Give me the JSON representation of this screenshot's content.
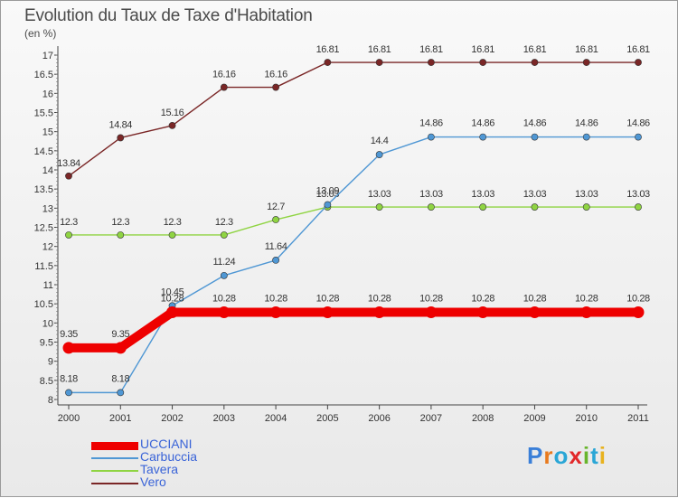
{
  "page": {
    "title": "Evolution du Taux de Taxe d'Habitation",
    "unit": "(en %)",
    "logo_text": "Proxiti"
  },
  "chart_data": {
    "type": "line",
    "title": "Evolution du Taux de Taxe d'Habitation",
    "ylabel": "(en %)",
    "xlabel": "",
    "ylim": [
      8,
      17
    ],
    "yticks": [
      8,
      8.5,
      9,
      9.5,
      10,
      10.5,
      11,
      11.5,
      12,
      12.5,
      13,
      13.5,
      14,
      14.5,
      15,
      15.5,
      16,
      16.5,
      17
    ],
    "x": [
      "2000",
      "2001",
      "2002",
      "2003",
      "2004",
      "2005",
      "2006",
      "2007",
      "2008",
      "2009",
      "2010",
      "2011"
    ],
    "legend_position": "bottom-left",
    "series": [
      {
        "name": "UCCIANI",
        "color": "#ee0000",
        "values": [
          9.35,
          9.35,
          10.28,
          10.28,
          10.28,
          10.28,
          10.28,
          10.28,
          10.28,
          10.28,
          10.28,
          10.28
        ],
        "labels": [
          "9.35",
          "9.35",
          "10.28",
          "10.28",
          "10.28",
          "10.28",
          "10.28",
          "10.28",
          "10.28",
          "10.28",
          "10.28",
          "10.28"
        ]
      },
      {
        "name": "Carbuccia",
        "color": "#4f97d4",
        "values": [
          8.18,
          8.18,
          10.45,
          11.24,
          11.64,
          13.09,
          14.4,
          14.86,
          14.86,
          14.86,
          14.86,
          14.86
        ],
        "labels": [
          "8.18",
          "8.18",
          "10.45",
          "11.24",
          "11.64",
          "13.09",
          "14.4",
          "14.86",
          "14.86",
          "14.86",
          "14.86",
          "14.86"
        ]
      },
      {
        "name": "Tavera",
        "color": "#8fd442",
        "values": [
          12.3,
          12.3,
          12.3,
          12.3,
          12.7,
          13.03,
          13.03,
          13.03,
          13.03,
          13.03,
          13.03,
          13.03
        ],
        "labels": [
          "12.3",
          "12.3",
          "12.3",
          "12.3",
          "12.7",
          "13.03",
          "13.03",
          "13.03",
          "13.03",
          "13.03",
          "13.03",
          "13.03"
        ]
      },
      {
        "name": "Vero",
        "color": "#7a2626",
        "values": [
          13.84,
          14.84,
          15.16,
          16.16,
          16.16,
          16.81,
          16.81,
          16.81,
          16.81,
          16.81,
          16.81,
          16.81
        ],
        "labels": [
          "13.84",
          "14.84",
          "15.16",
          "16.16",
          "16.16",
          "16.81",
          "16.81",
          "16.81",
          "16.81",
          "16.81",
          "16.81",
          "16.81"
        ]
      }
    ]
  }
}
